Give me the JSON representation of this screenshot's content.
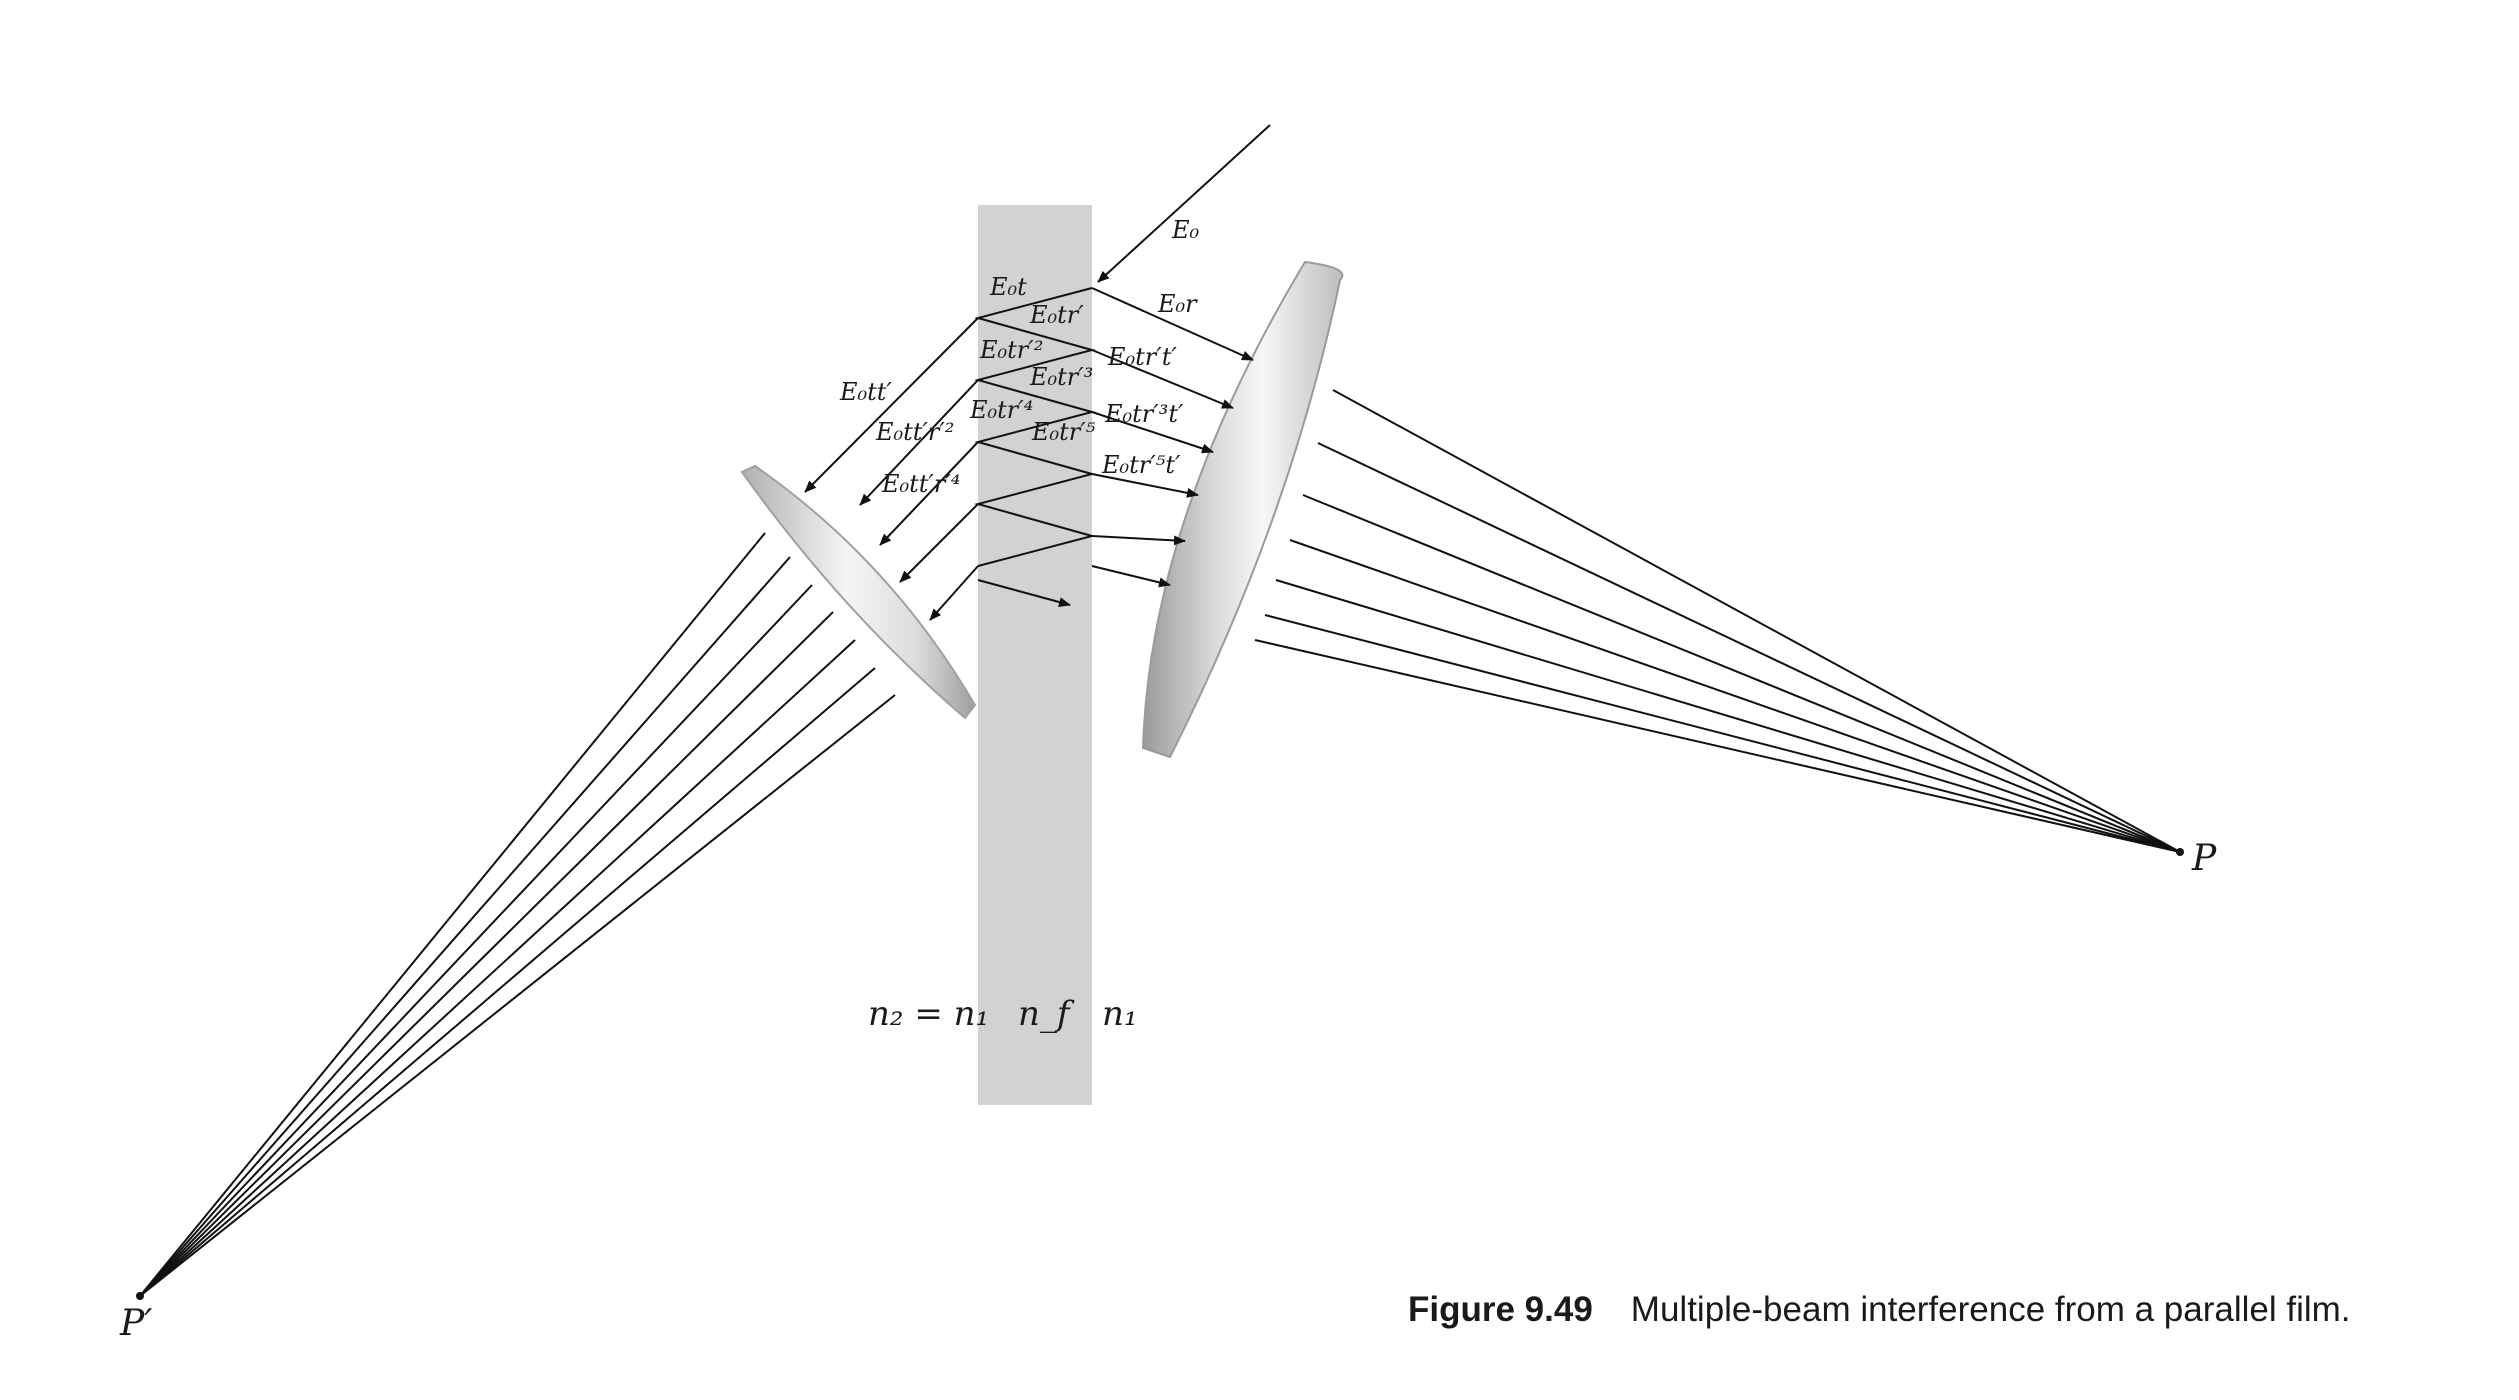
{
  "caption": {
    "number": "Figure 9.49",
    "text": "Multiple-beam interference from a parallel film."
  },
  "points": {
    "P": "P",
    "P_prime": "P′"
  },
  "indices": {
    "left": "n₂ = n₁",
    "film": "n_f",
    "right": "n₁"
  },
  "beams": {
    "incident": "E₀",
    "reflected_0": "E₀r",
    "internal_t": "E₀t",
    "internal_tr1": "E₀tr′",
    "internal_tr2": "E₀tr′²",
    "internal_tr3": "E₀tr′³",
    "internal_tr4": "E₀tr′⁴",
    "internal_tr5": "E₀tr′⁵",
    "reflected_1": "E₀tr′t′",
    "reflected_2": "E₀tr′³t′",
    "reflected_3": "E₀tr′⁵t′",
    "transmitted_1": "E₀tt′",
    "transmitted_2": "E₀tt′r′²",
    "transmitted_3": "E₀tt′r′⁴"
  },
  "colors": {
    "film": "#d1d2d4",
    "line": "#111111",
    "lens_light": "#f2f2f2",
    "lens_dark": "#a9a9a9"
  }
}
